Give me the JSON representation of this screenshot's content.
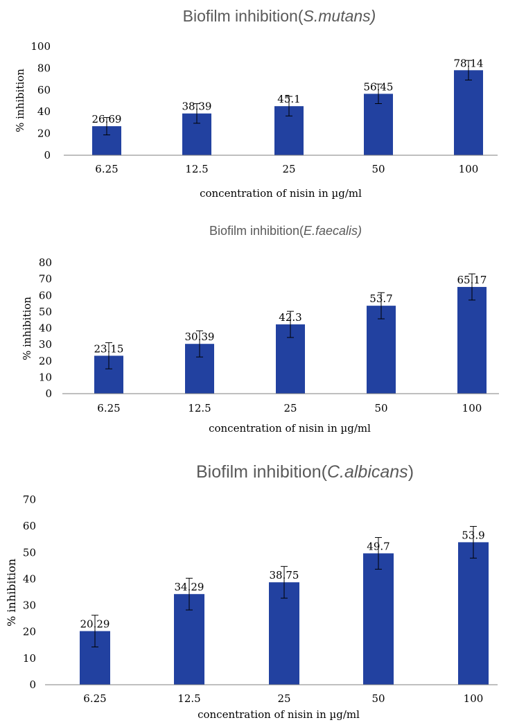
{
  "chart_data": [
    {
      "type": "bar",
      "title": "Biofilm inhibition(",
      "title_italic": "S.mutans)",
      "xlabel": "concentration of nisin in µg/ml",
      "ylabel": "% inhibition",
      "categories": [
        "6.25",
        "12.5",
        "25",
        "50",
        "100"
      ],
      "values": [
        26.69,
        38.39,
        45.1,
        56.45,
        78.14
      ],
      "data_labels": [
        "26.69",
        "38.39",
        "45.1",
        "56.45",
        "78.14"
      ],
      "error": [
        8,
        9,
        9,
        9,
        9
      ],
      "ylim": [
        0,
        100
      ],
      "yticks": [
        "0",
        "20",
        "40",
        "60",
        "80",
        "100"
      ],
      "bar_color": "#2241A0",
      "grid": false,
      "legend": "none"
    },
    {
      "type": "bar",
      "title": "Biofilm inhibition(",
      "title_italic": "E.faecalis)",
      "xlabel": "concentration of nisin in µg/ml",
      "ylabel": "% inhibition",
      "categories": [
        "6.25",
        "12.5",
        "25",
        "50",
        "100"
      ],
      "values": [
        23.15,
        30.39,
        42.3,
        53.7,
        65.17
      ],
      "data_labels": [
        "23.15",
        "30.39",
        "42.3",
        "53.7",
        "65.17"
      ],
      "error": [
        8,
        8,
        8,
        8,
        8
      ],
      "ylim": [
        0,
        80
      ],
      "yticks": [
        "0",
        "10",
        "20",
        "30",
        "40",
        "50",
        "60",
        "70",
        "80"
      ],
      "bar_color": "#2241A0",
      "grid": false,
      "legend": "none"
    },
    {
      "type": "bar",
      "title": "Biofilm inhibition(",
      "title_italic": "C.albicans",
      "title_end": ")",
      "xlabel": "concentration of nisin in µg/ml",
      "ylabel": "% inhibition",
      "categories": [
        "6.25",
        "12.5",
        "25",
        "50",
        "100"
      ],
      "values": [
        20.29,
        34.29,
        38.75,
        49.7,
        53.9
      ],
      "data_labels": [
        "20.29",
        "34.29",
        "38.75",
        "49.7",
        "53.9"
      ],
      "error": [
        6,
        6,
        6,
        6,
        6
      ],
      "ylim": [
        0,
        70
      ],
      "yticks": [
        "0",
        "10",
        "20",
        "30",
        "40",
        "50",
        "60",
        "70"
      ],
      "bar_color": "#2241A0",
      "grid": false,
      "legend": "none"
    }
  ]
}
